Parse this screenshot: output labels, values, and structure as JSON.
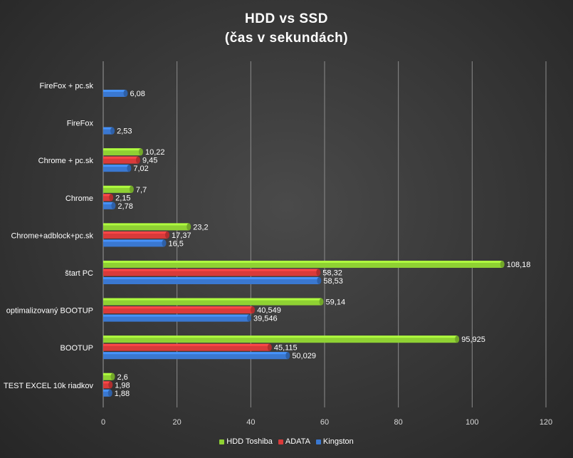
{
  "chart_data": {
    "type": "bar",
    "orientation": "horizontal",
    "title": "HDD vs SSD",
    "subtitle": "(čas v sekundách)",
    "categories": [
      "FireFox + pc.sk",
      "FireFox",
      "Chrome + pc.sk",
      "Chrome",
      "Chrome+adblock+pc.sk",
      "štart PC",
      "optimalizovaný BOOTUP",
      "BOOTUP",
      "TEST EXCEL 10k riadkov"
    ],
    "series": [
      {
        "name": "HDD Toshiba",
        "color": "#8fd133",
        "values": [
          null,
          null,
          10.22,
          7.7,
          23.2,
          108.18,
          59.14,
          95.925,
          2.6
        ],
        "labels": [
          "",
          "",
          "10,22",
          "7,7",
          "23,2",
          "108,18",
          "59,14",
          "95,925",
          "2,6"
        ]
      },
      {
        "name": "ADATA",
        "color": "#d93a3a",
        "values": [
          null,
          null,
          9.45,
          2.15,
          17.37,
          58.32,
          40.549,
          45.115,
          1.98
        ],
        "labels": [
          "",
          "",
          "9,45",
          "2,15",
          "17,37",
          "58,32",
          "40,549",
          "45,115",
          "1,98"
        ]
      },
      {
        "name": "Kingston",
        "color": "#3a78d1",
        "values": [
          6.08,
          2.53,
          7.02,
          2.78,
          16.5,
          58.53,
          39.546,
          50.029,
          1.88
        ],
        "labels": [
          "6,08",
          "2,53",
          "7,02",
          "2,78",
          "16,5",
          "58,53",
          "39,546",
          "50,029",
          "1,88"
        ]
      }
    ],
    "xlim": [
      0,
      120
    ],
    "xticks": [
      0,
      20,
      40,
      60,
      80,
      100,
      120
    ],
    "grid": true,
    "legend_position": "bottom"
  }
}
